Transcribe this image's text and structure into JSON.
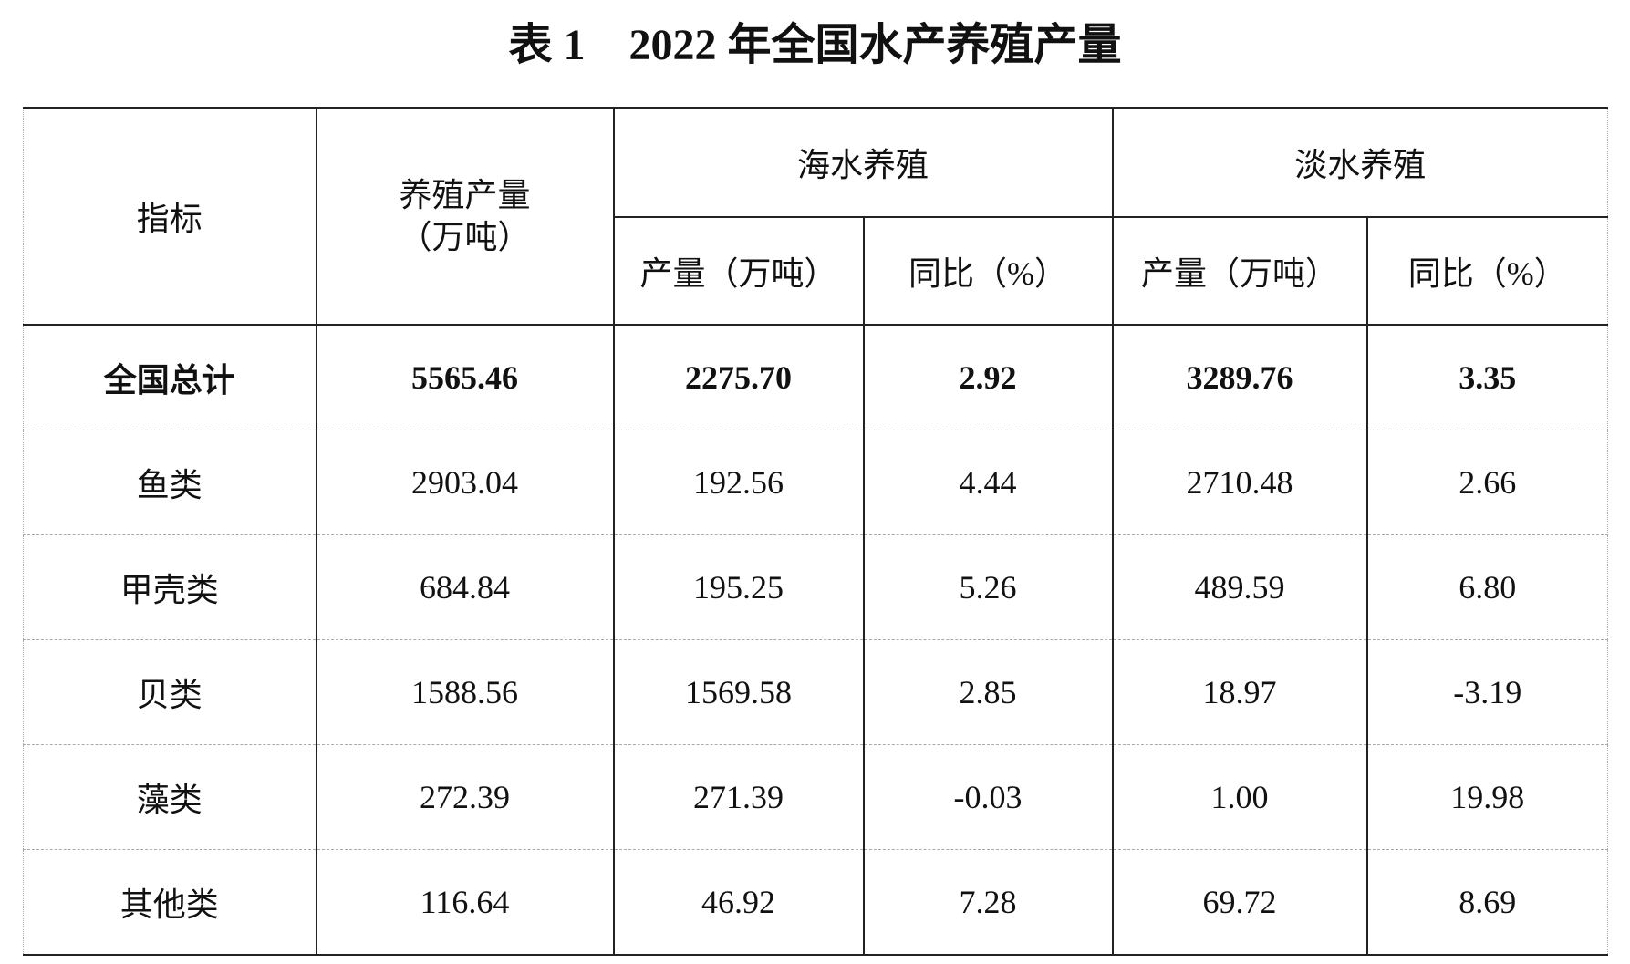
{
  "title": "表 1　2022 年全国水产养殖产量",
  "table": {
    "header": {
      "indicator": "指标",
      "total": [
        "养殖产量",
        "（万吨）"
      ],
      "groups": [
        "海水养殖",
        "淡水养殖"
      ],
      "sub_columns": [
        "产量（万吨）",
        "同比（%）",
        "产量（万吨）",
        "同比（%）"
      ]
    },
    "rows": [
      [
        "全国总计",
        "5565.46",
        "2275.70",
        "2.92",
        "3289.76",
        "3.35"
      ],
      [
        "鱼类",
        "2903.04",
        "192.56",
        "4.44",
        "2710.48",
        "2.66"
      ],
      [
        "甲壳类",
        "684.84",
        "195.25",
        "5.26",
        "489.59",
        "6.80"
      ],
      [
        "贝类",
        "1588.56",
        "1569.58",
        "2.85",
        "18.97",
        "-3.19"
      ],
      [
        "藻类",
        "272.39",
        "271.39",
        "-0.03",
        "1.00",
        "19.98"
      ],
      [
        "其他类",
        "116.64",
        "46.92",
        "7.28",
        "69.72",
        "8.69"
      ]
    ]
  }
}
